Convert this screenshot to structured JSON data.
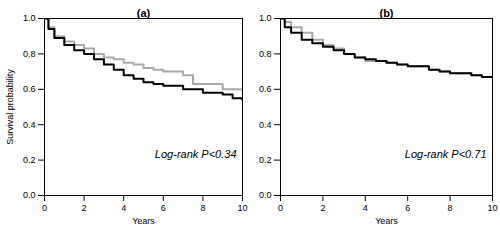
{
  "chart_data": [
    {
      "type": "line",
      "title": "(a)",
      "x_label": "Years",
      "y_label": "Survival probability",
      "annotation": "Log-rank P<0.34",
      "line_style": "step",
      "x": [
        0,
        0.2,
        0.5,
        1,
        1.5,
        2,
        2.5,
        3,
        3.5,
        4,
        4.5,
        5,
        5.5,
        6,
        7,
        7.5,
        8,
        9,
        9.5,
        10
      ],
      "series": [
        {
          "color": "#aaaaaa",
          "values": [
            1.0,
            0.95,
            0.9,
            0.87,
            0.85,
            0.83,
            0.8,
            0.78,
            0.77,
            0.75,
            0.74,
            0.72,
            0.71,
            0.7,
            0.68,
            0.63,
            0.63,
            0.6,
            0.6,
            0.59
          ]
        },
        {
          "color": "#000000",
          "values": [
            1.0,
            0.94,
            0.89,
            0.85,
            0.82,
            0.8,
            0.77,
            0.74,
            0.71,
            0.68,
            0.66,
            0.64,
            0.63,
            0.62,
            0.6,
            0.6,
            0.58,
            0.57,
            0.55,
            0.54
          ]
        }
      ],
      "xlim": [
        0,
        10
      ],
      "xticks": [
        0,
        2,
        4,
        6,
        8,
        10
      ],
      "ylim": [
        0,
        1
      ],
      "yticks": [
        {
          "value": 0,
          "label": "0.0"
        },
        {
          "value": 0.2,
          "label": "0.2"
        },
        {
          "value": 0.4,
          "label": "0.4"
        },
        {
          "value": 0.6,
          "label": "0.6"
        },
        {
          "value": 0.8,
          "label": "0.8"
        },
        {
          "value": 1,
          "label": "1.0"
        }
      ]
    },
    {
      "type": "line",
      "title": "(b)",
      "x_label": "Years",
      "annotation": "Log-rank P<0.71",
      "line_style": "step",
      "x": [
        0,
        0.2,
        0.5,
        1,
        1.5,
        2,
        2.5,
        3,
        3.5,
        4,
        4.5,
        5,
        5.5,
        6,
        7,
        7.5,
        8,
        9,
        9.5,
        10
      ],
      "series": [
        {
          "color": "#aaaaaa",
          "values": [
            1.0,
            0.98,
            0.95,
            0.92,
            0.88,
            0.85,
            0.83,
            0.8,
            0.78,
            0.76,
            0.76,
            0.75,
            0.74,
            0.73,
            0.71,
            0.7,
            0.69,
            0.68,
            0.67,
            0.66
          ]
        },
        {
          "color": "#000000",
          "values": [
            1.0,
            0.95,
            0.92,
            0.88,
            0.86,
            0.84,
            0.82,
            0.8,
            0.78,
            0.77,
            0.76,
            0.75,
            0.74,
            0.73,
            0.71,
            0.7,
            0.69,
            0.68,
            0.67,
            0.67
          ]
        }
      ],
      "xlim": [
        0,
        10
      ],
      "xticks": [
        0,
        2,
        4,
        6,
        8,
        10
      ],
      "ylim": [
        0,
        1
      ],
      "yticks": [
        {
          "value": 0,
          "label": "0.0"
        },
        {
          "value": 0.2,
          "label": "0.2"
        },
        {
          "value": 0.4,
          "label": "0.4"
        },
        {
          "value": 0.6,
          "label": "0.6"
        },
        {
          "value": 0.8,
          "label": "0.8"
        },
        {
          "value": 1,
          "label": "1.0"
        }
      ]
    }
  ]
}
